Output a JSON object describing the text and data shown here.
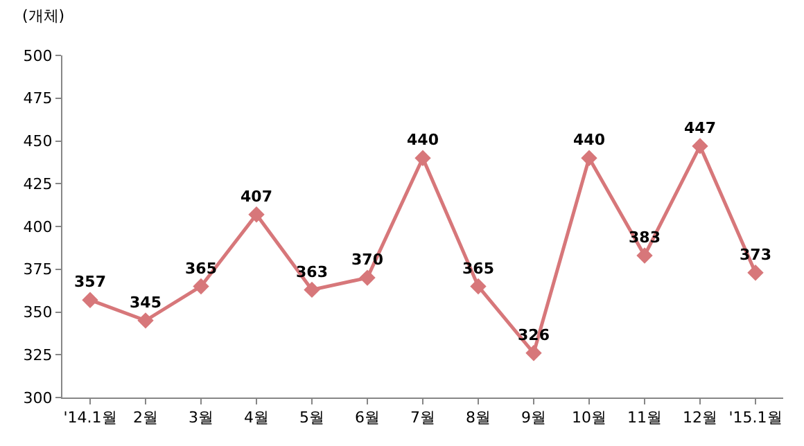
{
  "chart_data": {
    "type": "line",
    "ylabel": "(개체)",
    "categories": [
      "'14.1월",
      "2월",
      "3월",
      "4월",
      "5월",
      "6월",
      "7월",
      "8월",
      "9월",
      "10월",
      "11월",
      "12월",
      "'15.1월"
    ],
    "series": [
      {
        "color": "#d7777a",
        "values": [
          357,
          345,
          365,
          407,
          363,
          370,
          440,
          365,
          326,
          440,
          383,
          447,
          373
        ]
      }
    ],
    "ylim": [
      300,
      500
    ],
    "yticks": [
      300,
      325,
      350,
      375,
      400,
      425,
      450,
      475,
      500
    ],
    "grid": false,
    "marker": "diamond",
    "line_style": "solid",
    "data_labels": true
  }
}
